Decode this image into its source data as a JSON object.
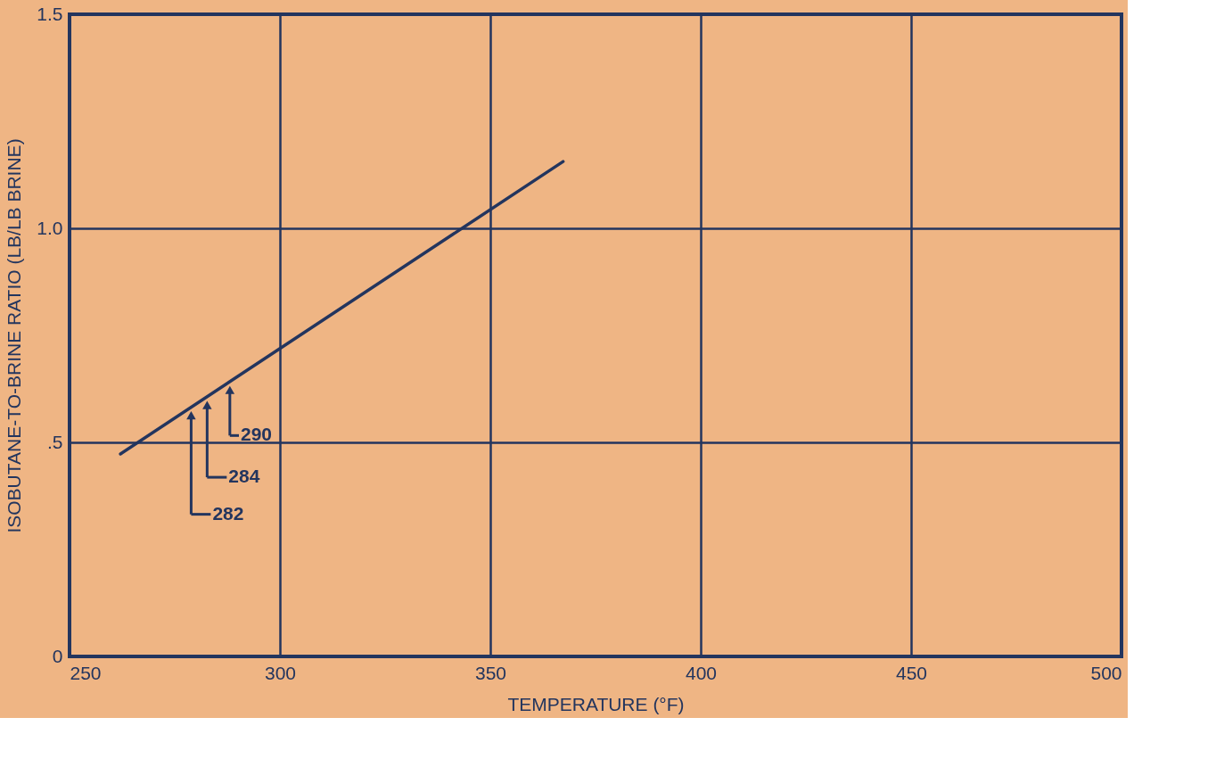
{
  "chart_data": {
    "type": "line",
    "xlabel": "TEMPERATURE (°F)",
    "ylabel": "ISOBUTANE-TO-BRINE RATIO (LB/LB BRINE)",
    "x": [
      262.1,
      367.3
    ],
    "series": [
      {
        "color": "#23355e",
        "values": [
          0.473,
          1.156
        ]
      }
    ],
    "xlim": [
      250,
      500
    ],
    "xticks": [
      250,
      300,
      350,
      400,
      450,
      500
    ],
    "ylim": [
      0,
      1.5
    ],
    "yticks": [
      {
        "value": 0,
        "label": "0"
      },
      {
        "value": 0.5,
        "label": ".5"
      },
      {
        "value": 1,
        "label": "1.0"
      },
      {
        "value": 1.5,
        "label": "1.5"
      }
    ],
    "grid": true,
    "marker": "none",
    "line_style": "solid",
    "annotations": [
      {
        "text": "282",
        "x": 278.9,
        "y": 0.582
      },
      {
        "text": "284",
        "x": 282.7,
        "y": 0.606
      },
      {
        "text": "290",
        "x": 288.1,
        "y": 0.641
      }
    ]
  }
}
